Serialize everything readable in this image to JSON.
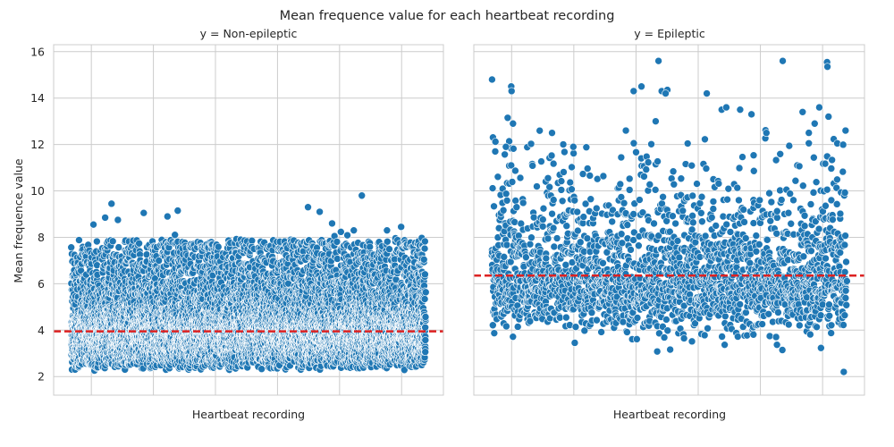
{
  "chart_data": {
    "type": "scatter",
    "title": "Mean frequence value for each heartbeat recording",
    "ylabel": "Mean frequence value",
    "ylim": [
      1.2,
      16.3
    ],
    "yticks": [
      2,
      4,
      6,
      8,
      10,
      12,
      14,
      16
    ],
    "grid": true,
    "point_color": "#1f77b4",
    "point_edge_color": "#ffffff",
    "mean_line_color": "#dd2222",
    "panels": [
      {
        "title": "y = Non-epileptic",
        "xlabel": "Heartbeat recording",
        "n_points": 9200,
        "y_distribution": {
          "min": 1.9,
          "max": 9.8,
          "mean": 3.95
        },
        "mean_line": 3.95,
        "outliers": [
          {
            "x": 0.113,
            "y": 9.45
          },
          {
            "x": 0.095,
            "y": 8.85
          },
          {
            "x": 0.062,
            "y": 8.55
          },
          {
            "x": 0.204,
            "y": 9.05
          },
          {
            "x": 0.3,
            "y": 9.15
          },
          {
            "x": 0.271,
            "y": 8.9
          },
          {
            "x": 0.131,
            "y": 8.75
          },
          {
            "x": 0.668,
            "y": 9.3
          },
          {
            "x": 0.701,
            "y": 9.1
          },
          {
            "x": 0.736,
            "y": 8.6
          },
          {
            "x": 0.82,
            "y": 9.8
          },
          {
            "x": 0.931,
            "y": 8.45
          }
        ]
      },
      {
        "title": "y = Epileptic",
        "xlabel": "Heartbeat recording",
        "n_points": 2300,
        "y_distribution": {
          "min": 2.2,
          "max": 15.6,
          "mean": 6.35
        },
        "mean_line": 6.35,
        "outliers": [
          {
            "x": 0.001,
            "y": 14.8
          },
          {
            "x": 0.055,
            "y": 14.5
          },
          {
            "x": 0.056,
            "y": 14.3
          },
          {
            "x": 0.045,
            "y": 13.15
          },
          {
            "x": 0.06,
            "y": 12.9
          },
          {
            "x": 0.01,
            "y": 11.7
          },
          {
            "x": 0.04,
            "y": 11.9
          },
          {
            "x": 0.17,
            "y": 12.5
          },
          {
            "x": 0.23,
            "y": 11.9
          },
          {
            "x": 0.378,
            "y": 12.6
          },
          {
            "x": 0.4,
            "y": 14.3
          },
          {
            "x": 0.422,
            "y": 14.5
          },
          {
            "x": 0.462,
            "y": 13.0
          },
          {
            "x": 0.479,
            "y": 14.3
          },
          {
            "x": 0.495,
            "y": 14.35
          },
          {
            "x": 0.49,
            "y": 14.2
          },
          {
            "x": 0.47,
            "y": 15.6
          },
          {
            "x": 0.606,
            "y": 14.2
          },
          {
            "x": 0.648,
            "y": 13.5
          },
          {
            "x": 0.661,
            "y": 13.6
          },
          {
            "x": 0.7,
            "y": 13.5
          },
          {
            "x": 0.732,
            "y": 13.3
          },
          {
            "x": 0.774,
            "y": 12.5
          },
          {
            "x": 0.82,
            "y": 15.6
          },
          {
            "x": 0.876,
            "y": 13.4
          },
          {
            "x": 0.91,
            "y": 12.9
          },
          {
            "x": 0.945,
            "y": 15.55
          },
          {
            "x": 0.946,
            "y": 15.35
          },
          {
            "x": 0.949,
            "y": 13.2
          },
          {
            "x": 0.923,
            "y": 13.6
          },
          {
            "x": 0.997,
            "y": 12.6
          },
          {
            "x": 0.992,
            "y": 2.2
          }
        ]
      }
    ]
  }
}
